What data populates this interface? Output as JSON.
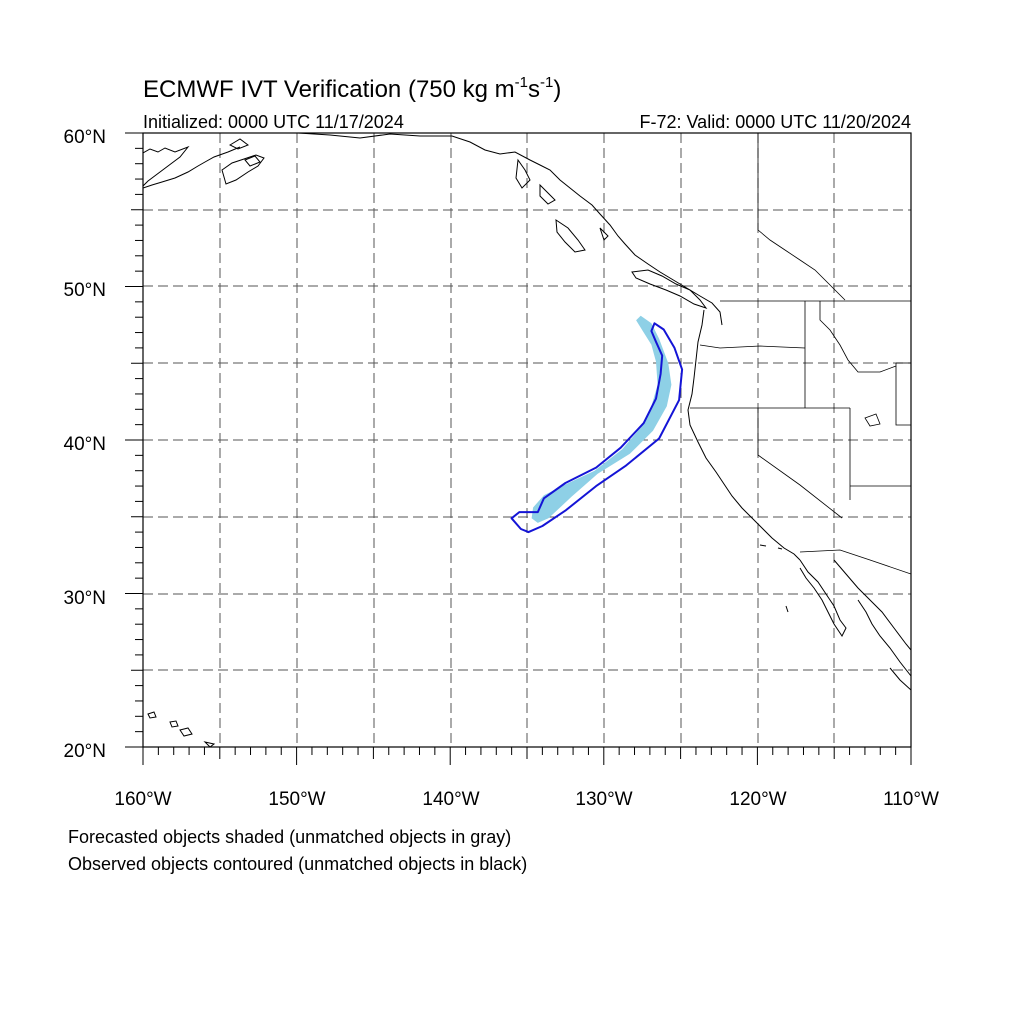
{
  "title": {
    "main": "ECMWF IVT Verification (750 kg m",
    "sup1": "-1",
    "mid": "s",
    "sup2": "-1",
    "end": ")"
  },
  "subtitle_left": "Initialized: 0000 UTC 11/17/2024",
  "subtitle_right": "F-72: Valid: 0000 UTC 11/20/2024",
  "lat_labels": [
    "60°N",
    "50°N",
    "40°N",
    "30°N",
    "20°N"
  ],
  "lon_labels": [
    "160°W",
    "150°W",
    "140°W",
    "130°W",
    "120°W",
    "110°W"
  ],
  "lat_values": [
    60,
    50,
    40,
    30,
    20
  ],
  "lon_values": [
    -160,
    -150,
    -140,
    -130,
    -120,
    -110
  ],
  "footnote": {
    "line1": "Forecasted objects shaded (unmatched objects in gray)",
    "line2": "Observed objects contoured (unmatched objects in black)"
  },
  "colors": {
    "forecast_fill": "#8ed0e6",
    "observed_contour": "#1414d6",
    "grid": "#555555",
    "coast": "#000000"
  },
  "map_extent": {
    "lon_min": -160,
    "lon_max": -110,
    "lat_min": 20,
    "lat_max": 60
  },
  "forecast_object": {
    "matched": true,
    "outline": [
      [
        -127.6,
        48.1
      ],
      [
        -126.9,
        47.6
      ],
      [
        -126.4,
        46.6
      ],
      [
        -125.8,
        45.0
      ],
      [
        -125.6,
        43.6
      ],
      [
        -125.9,
        42.2
      ],
      [
        -126.8,
        40.6
      ],
      [
        -128.3,
        39.1
      ],
      [
        -130.4,
        37.8
      ],
      [
        -132.1,
        36.3
      ],
      [
        -133.6,
        34.9
      ],
      [
        -134.3,
        34.6
      ],
      [
        -134.7,
        34.9
      ],
      [
        -134.6,
        35.6
      ],
      [
        -133.9,
        36.4
      ],
      [
        -132.3,
        37.2
      ],
      [
        -130.6,
        38.0
      ],
      [
        -128.8,
        39.4
      ],
      [
        -127.6,
        40.8
      ],
      [
        -126.9,
        42.2
      ],
      [
        -126.5,
        43.6
      ],
      [
        -126.6,
        45.1
      ],
      [
        -126.9,
        46.2
      ],
      [
        -127.4,
        47.0
      ],
      [
        -127.9,
        47.8
      ]
    ]
  },
  "observed_object": {
    "matched": true,
    "outline": [
      [
        -126.7,
        47.6
      ],
      [
        -126.1,
        47.2
      ],
      [
        -125.4,
        46.0
      ],
      [
        -124.9,
        44.6
      ],
      [
        -125.1,
        42.6
      ],
      [
        -126.4,
        40.1
      ],
      [
        -128.6,
        38.3
      ],
      [
        -130.5,
        37.0
      ],
      [
        -132.5,
        35.4
      ],
      [
        -134.0,
        34.4
      ],
      [
        -134.9,
        34.0
      ],
      [
        -135.4,
        34.2
      ],
      [
        -136.0,
        34.9
      ],
      [
        -135.5,
        35.3
      ],
      [
        -134.3,
        35.3
      ],
      [
        -133.9,
        36.2
      ],
      [
        -132.5,
        37.2
      ],
      [
        -130.5,
        38.2
      ],
      [
        -128.9,
        39.5
      ],
      [
        -127.4,
        41.1
      ],
      [
        -126.6,
        42.7
      ],
      [
        -126.3,
        44.3
      ],
      [
        -126.2,
        45.5
      ],
      [
        -126.6,
        46.4
      ],
      [
        -126.9,
        47.1
      ]
    ]
  }
}
